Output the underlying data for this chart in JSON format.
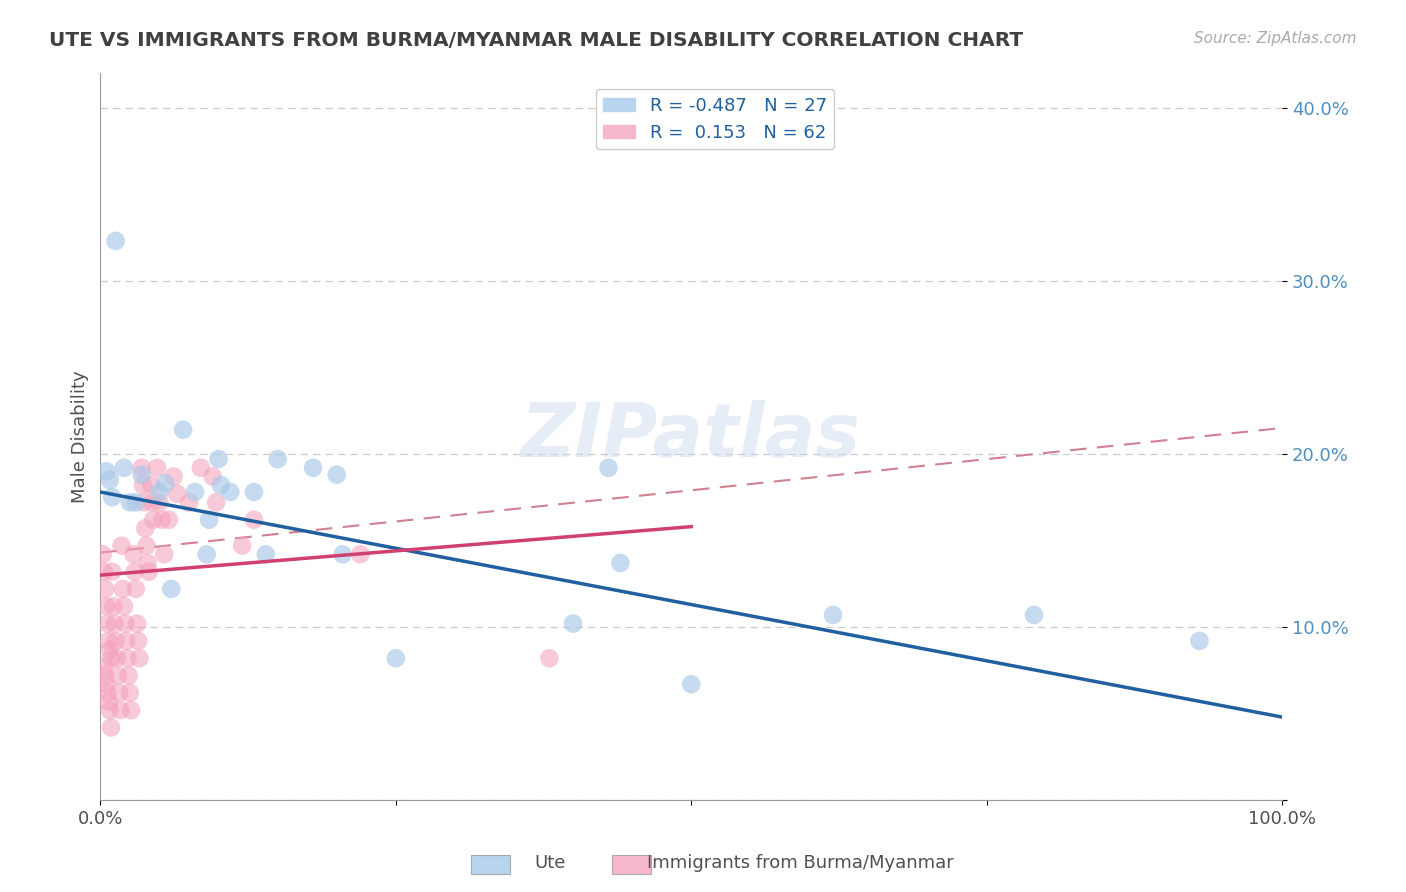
{
  "title": "UTE VS IMMIGRANTS FROM BURMA/MYANMAR MALE DISABILITY CORRELATION CHART",
  "source": "Source: ZipAtlas.com",
  "ylabel": "Male Disability",
  "xlim": [
    0.0,
    1.0
  ],
  "ylim": [
    0.0,
    0.42
  ],
  "xticks": [
    0.0,
    0.25,
    0.5,
    0.75,
    1.0
  ],
  "xtick_labels": [
    "0.0%",
    "",
    "",
    "",
    "100.0%"
  ],
  "yticks": [
    0.0,
    0.1,
    0.2,
    0.3,
    0.4
  ],
  "ytick_labels": [
    "",
    "10.0%",
    "20.0%",
    "30.0%",
    "40.0%"
  ],
  "watermark": "ZIPatlas",
  "blue_color": "#a8c8e8",
  "pink_color": "#f4a0b8",
  "blue_line_color": "#2060a0",
  "pink_line_color": "#d04070",
  "dash_line_color": "#d08090",
  "blue_line": [
    [
      0.0,
      0.178
    ],
    [
      1.0,
      0.048
    ]
  ],
  "pink_line": [
    [
      0.0,
      0.13
    ],
    [
      0.5,
      0.158
    ]
  ],
  "dash_line": [
    [
      0.0,
      0.143
    ],
    [
      1.0,
      0.215
    ]
  ],
  "ute_points": [
    [
      0.005,
      0.19
    ],
    [
      0.008,
      0.185
    ],
    [
      0.01,
      0.175
    ],
    [
      0.02,
      0.192
    ],
    [
      0.025,
      0.172
    ],
    [
      0.03,
      0.172
    ],
    [
      0.035,
      0.188
    ],
    [
      0.05,
      0.178
    ],
    [
      0.055,
      0.183
    ],
    [
      0.06,
      0.122
    ],
    [
      0.07,
      0.214
    ],
    [
      0.08,
      0.178
    ],
    [
      0.09,
      0.142
    ],
    [
      0.092,
      0.162
    ],
    [
      0.1,
      0.197
    ],
    [
      0.102,
      0.182
    ],
    [
      0.11,
      0.178
    ],
    [
      0.13,
      0.178
    ],
    [
      0.14,
      0.142
    ],
    [
      0.15,
      0.197
    ],
    [
      0.18,
      0.192
    ],
    [
      0.2,
      0.188
    ],
    [
      0.205,
      0.142
    ],
    [
      0.25,
      0.082
    ],
    [
      0.4,
      0.102
    ],
    [
      0.44,
      0.137
    ],
    [
      0.43,
      0.192
    ],
    [
      0.5,
      0.067
    ],
    [
      0.62,
      0.107
    ],
    [
      0.79,
      0.107
    ],
    [
      0.93,
      0.092
    ]
  ],
  "ute_outlier": [
    0.013,
    0.323
  ],
  "burma_points": [
    [
      0.002,
      0.142
    ],
    [
      0.003,
      0.132
    ],
    [
      0.004,
      0.122
    ],
    [
      0.005,
      0.112
    ],
    [
      0.006,
      0.102
    ],
    [
      0.007,
      0.092
    ],
    [
      0.008,
      0.087
    ],
    [
      0.009,
      0.082
    ],
    [
      0.003,
      0.077
    ],
    [
      0.004,
      0.072
    ],
    [
      0.005,
      0.067
    ],
    [
      0.006,
      0.062
    ],
    [
      0.007,
      0.057
    ],
    [
      0.008,
      0.052
    ],
    [
      0.009,
      0.042
    ],
    [
      0.01,
      0.132
    ],
    [
      0.011,
      0.112
    ],
    [
      0.012,
      0.102
    ],
    [
      0.013,
      0.092
    ],
    [
      0.014,
      0.082
    ],
    [
      0.015,
      0.072
    ],
    [
      0.016,
      0.062
    ],
    [
      0.017,
      0.052
    ],
    [
      0.018,
      0.147
    ],
    [
      0.019,
      0.122
    ],
    [
      0.02,
      0.112
    ],
    [
      0.021,
      0.102
    ],
    [
      0.022,
      0.092
    ],
    [
      0.023,
      0.082
    ],
    [
      0.024,
      0.072
    ],
    [
      0.025,
      0.062
    ],
    [
      0.026,
      0.052
    ],
    [
      0.028,
      0.142
    ],
    [
      0.029,
      0.132
    ],
    [
      0.03,
      0.122
    ],
    [
      0.031,
      0.102
    ],
    [
      0.032,
      0.092
    ],
    [
      0.033,
      0.082
    ],
    [
      0.035,
      0.192
    ],
    [
      0.036,
      0.182
    ],
    [
      0.037,
      0.172
    ],
    [
      0.038,
      0.157
    ],
    [
      0.039,
      0.147
    ],
    [
      0.04,
      0.137
    ],
    [
      0.041,
      0.132
    ],
    [
      0.043,
      0.182
    ],
    [
      0.044,
      0.172
    ],
    [
      0.045,
      0.162
    ],
    [
      0.048,
      0.192
    ],
    [
      0.05,
      0.172
    ],
    [
      0.052,
      0.162
    ],
    [
      0.054,
      0.142
    ],
    [
      0.058,
      0.162
    ],
    [
      0.062,
      0.187
    ],
    [
      0.065,
      0.177
    ],
    [
      0.075,
      0.172
    ],
    [
      0.085,
      0.192
    ],
    [
      0.095,
      0.187
    ],
    [
      0.098,
      0.172
    ],
    [
      0.12,
      0.147
    ],
    [
      0.13,
      0.162
    ],
    [
      0.22,
      0.142
    ],
    [
      0.38,
      0.082
    ]
  ]
}
